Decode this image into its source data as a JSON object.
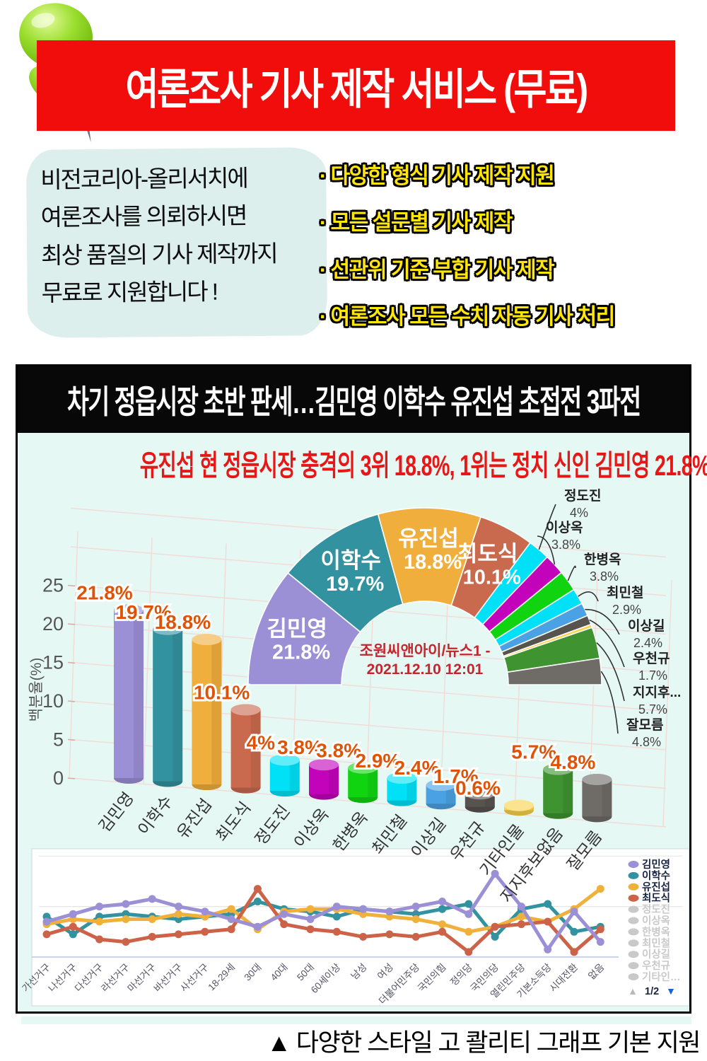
{
  "icons": {
    "pushpin": "green-pushpin"
  },
  "colors": {
    "banner_red": "#f20d0d",
    "headline_red": "#e81717",
    "feature_yellow": "#ffe60a",
    "box_bg": "#e5f8f4",
    "bubble_bg": "#ddefed",
    "value_label_orange": "#dd5409",
    "source_red": "#c2272e",
    "legend_active_text": "#15233f",
    "legend_inactive": "#c9c9c9",
    "pagination_blue": "#1861d8",
    "grid_pink": "#f2dad6"
  },
  "header": {
    "banner": "여론조사 기사 제작 서비스 (무료)"
  },
  "intro": {
    "lines": [
      "비전코리아-올리서치에",
      "여론조사를 의뢰하시면",
      "최상 품질의 기사 제작까지",
      "무료로 지원합니다 !"
    ]
  },
  "features": [
    "· 다양한 형식 기사 제작 지원",
    "· 모든 설문별 기사 제작",
    "· 선관위 기준 부합 기사 제작",
    "· 여론조사 모든 수치 자동 기사 처리"
  ],
  "article": {
    "title": "차기 정읍시장 초반 판세…김민영 이학수 유진섭 초접전 3파전",
    "headline": "유진섭 현 정읍시장 충격의 3위 18.8%, 1위는 정치 신인 김민영 21.8%"
  },
  "chart_data": [
    {
      "type": "bar",
      "style": "3d-cylinder",
      "ylabel": "백분율(%)",
      "yticks": [
        0,
        5,
        10,
        15,
        20,
        25
      ],
      "ylim": [
        0,
        25
      ],
      "categories": [
        "김민영",
        "이학수",
        "유진섭",
        "최도식",
        "정도진",
        "이상옥",
        "한병옥",
        "최민철",
        "이상길",
        "우천규",
        "기타인물",
        "지지후보없음",
        "잘모름"
      ],
      "values": [
        21.8,
        19.7,
        18.8,
        10.1,
        4,
        3.8,
        3.8,
        2.9,
        2.4,
        1.7,
        0.6,
        5.7,
        4.8
      ],
      "labels": [
        "21.8%",
        "19.7%",
        "18.8%",
        "10.1%",
        "4%",
        "3.8%",
        "3.8%",
        "2.9%",
        "2.4%",
        "1.7%",
        "0.6%",
        "5.7%",
        "4.8%"
      ],
      "colors": [
        "#9b8fd6",
        "#33929f",
        "#f0ae3c",
        "#c96a4e",
        "#00e0f6",
        "#c203ba",
        "#11d411",
        "#00e0f6",
        "#4aa2e4",
        "#57534f",
        "#fbd24b",
        "#3f9330",
        "#6f6b67"
      ]
    },
    {
      "type": "pie",
      "shape": "half-donut",
      "categories": [
        "김민영",
        "이학수",
        "유진섭",
        "최도식",
        "정도진",
        "이상옥",
        "한병옥",
        "최민철",
        "이상길",
        "우천규",
        "기타인물",
        "지지후보없음",
        "잘모름"
      ],
      "values": [
        21.8,
        19.7,
        18.8,
        10.1,
        4,
        3.8,
        3.8,
        2.9,
        2.4,
        1.7,
        0.6,
        5.7,
        4.8
      ],
      "colors": [
        "#9b8fd6",
        "#33929f",
        "#f0ae3c",
        "#c96a4e",
        "#00e0f6",
        "#c203ba",
        "#11d411",
        "#00e0f6",
        "#4aa2e4",
        "#57534f",
        "#fbd24b",
        "#3f9330",
        "#6f6b67"
      ],
      "inside_labels": [
        {
          "slice": 0,
          "name": "김민영",
          "value": "21.8%"
        },
        {
          "slice": 1,
          "name": "이학수",
          "value": "19.7%"
        },
        {
          "slice": 2,
          "name": "유진섭",
          "value": "18.8%"
        },
        {
          "slice": 3,
          "name": "최도식",
          "value": "10.1%"
        }
      ],
      "callouts": [
        {
          "slice": 4,
          "name": "정도진",
          "value": "4%"
        },
        {
          "slice": 5,
          "name": "이상옥",
          "value": "3.8%"
        },
        {
          "slice": 6,
          "name": "한병옥",
          "value": "3.8%"
        },
        {
          "slice": 7,
          "name": "최민철",
          "value": "2.9%"
        },
        {
          "slice": 8,
          "name": "이상길",
          "value": "2.4%"
        },
        {
          "slice": 9,
          "name": "우천규",
          "value": "1.7%"
        },
        {
          "slice": 11,
          "name": "지지후...",
          "value": "5.7%"
        },
        {
          "slice": 12,
          "name": "잘모름",
          "value": "4.8%"
        }
      ],
      "center_text": [
        "조원씨앤아이/뉴스1 -",
        "2021.12.10 12:01"
      ]
    },
    {
      "type": "line",
      "ylim": [
        0,
        40
      ],
      "categories": [
        "가선거구",
        "나선거구",
        "다선거구",
        "라선거구",
        "마선거구",
        "바선거구",
        "사선거구",
        "18-29세",
        "30대",
        "40대",
        "50대",
        "60세이상",
        "남성",
        "여성",
        "더불어민주당",
        "국민의힘",
        "정의당",
        "국민의당",
        "열린민주당",
        "기본소득당",
        "시대전환",
        "없음"
      ],
      "series": [
        {
          "name": "김민영",
          "color": "#9b8fd6",
          "values": [
            14,
            17,
            20,
            21,
            23,
            20,
            18,
            15,
            12,
            17,
            15,
            20,
            19,
            18,
            20,
            22,
            17,
            33,
            20,
            3,
            18,
            6
          ]
        },
        {
          "name": "이학수",
          "color": "#33929f",
          "values": [
            16,
            9,
            16,
            17,
            16,
            15,
            16,
            17,
            22,
            19,
            18,
            16,
            19,
            18,
            17,
            19,
            21,
            8,
            19,
            21,
            10,
            12
          ]
        },
        {
          "name": "유진섭",
          "color": "#f0b03c",
          "values": [
            13,
            15,
            14,
            15,
            15,
            17,
            16,
            19,
            11,
            18,
            19,
            19,
            17,
            16,
            15,
            13,
            10,
            12,
            16,
            14,
            19,
            27
          ]
        },
        {
          "name": "최도식",
          "color": "#cc6248",
          "values": [
            9,
            12,
            7,
            6,
            8,
            9,
            10,
            11,
            27,
            13,
            11,
            10,
            8,
            9,
            8,
            10,
            2,
            12,
            13,
            14,
            2,
            11
          ]
        }
      ],
      "legend": {
        "active": [
          "김민영",
          "이학수",
          "유진섭",
          "최도식"
        ],
        "inactive": [
          "정도진",
          "이상옥",
          "한병옥",
          "최민철",
          "이상길",
          "우천규",
          "기타인…"
        ],
        "pagination": {
          "prev": "▲",
          "label": "1/2",
          "next": "▼"
        }
      }
    }
  ],
  "caption": "▲ 다양한 스타일  고 콸리티 그래프 기본 지원"
}
